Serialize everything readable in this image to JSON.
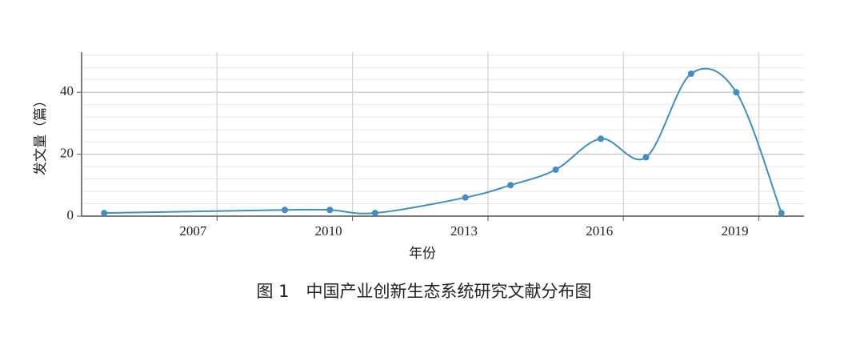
{
  "chart_data": {
    "type": "line",
    "caption": "图 1　中国产业创新生态系统研究文献分布图",
    "xlabel": "年份",
    "ylabel": "发文量（篇）",
    "x": [
      2004.5,
      2008.5,
      2009.5,
      2010.5,
      2012.5,
      2013.5,
      2014.5,
      2015.5,
      2016.5,
      2017.5,
      2018.5,
      2019.5
    ],
    "series": [
      {
        "name": "发文量",
        "color": "#3f8fc4",
        "values": [
          1,
          2,
          2,
          1,
          6,
          10,
          15,
          25,
          19,
          46,
          40,
          1
        ]
      }
    ],
    "xlim": [
      2004,
      2020
    ],
    "xticks": [
      2007,
      2010,
      2013,
      2016,
      2019
    ],
    "ylim": [
      0,
      53
    ],
    "yticks": [
      0,
      20,
      40
    ],
    "yminorticks": [
      4,
      8,
      12,
      16,
      24,
      28,
      32,
      36,
      44,
      48,
      52
    ],
    "grid": true,
    "smooth": true
  }
}
